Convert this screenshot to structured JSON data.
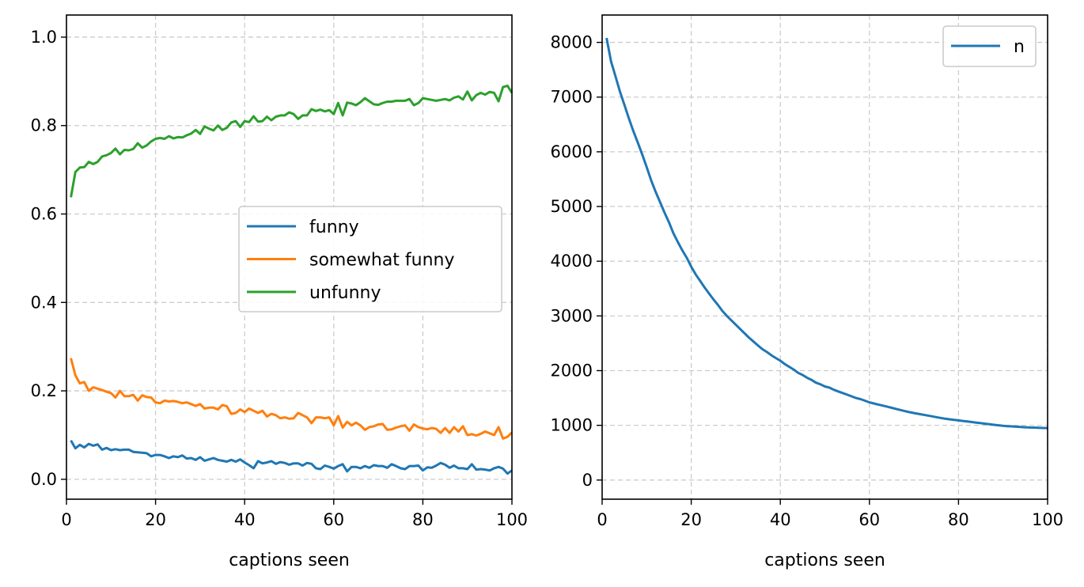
{
  "chart_data": [
    {
      "type": "line",
      "xlabel": "captions seen",
      "ylabel": "",
      "xlim": [
        0,
        100
      ],
      "ylim": [
        -0.045,
        1.05
      ],
      "xticks": [
        0,
        20,
        40,
        60,
        80,
        100
      ],
      "yticks": [
        0.0,
        0.2,
        0.4,
        0.6,
        0.8,
        1.0
      ],
      "ytick_labels": [
        "0.0",
        "0.2",
        "0.4",
        "0.6",
        "0.8",
        "1.0"
      ],
      "grid": true,
      "legend_position": "center-right",
      "x": [
        1,
        2,
        3,
        4,
        5,
        6,
        7,
        8,
        9,
        10,
        11,
        12,
        13,
        14,
        15,
        16,
        17,
        18,
        19,
        20,
        21,
        22,
        23,
        24,
        25,
        26,
        27,
        28,
        29,
        30,
        31,
        32,
        33,
        34,
        35,
        36,
        37,
        38,
        39,
        40,
        41,
        42,
        43,
        44,
        45,
        46,
        47,
        48,
        49,
        50,
        51,
        52,
        53,
        54,
        55,
        56,
        57,
        58,
        59,
        60,
        61,
        62,
        63,
        64,
        65,
        66,
        67,
        68,
        69,
        70,
        71,
        72,
        73,
        74,
        75,
        76,
        77,
        78,
        79,
        80,
        81,
        82,
        83,
        84,
        85,
        86,
        87,
        88,
        89,
        90,
        91,
        92,
        93,
        94,
        95,
        96,
        97,
        98,
        99,
        100
      ],
      "series": [
        {
          "name": "funny",
          "color": "#1f77b4",
          "values": [
            0.088,
            0.07,
            0.078,
            0.072,
            0.08,
            0.076,
            0.079,
            0.067,
            0.071,
            0.066,
            0.068,
            0.066,
            0.067,
            0.067,
            0.062,
            0.061,
            0.06,
            0.059,
            0.052,
            0.055,
            0.055,
            0.052,
            0.048,
            0.052,
            0.05,
            0.054,
            0.047,
            0.048,
            0.044,
            0.05,
            0.042,
            0.045,
            0.048,
            0.044,
            0.042,
            0.04,
            0.044,
            0.04,
            0.045,
            0.038,
            0.032,
            0.025,
            0.041,
            0.036,
            0.038,
            0.041,
            0.035,
            0.039,
            0.037,
            0.033,
            0.036,
            0.036,
            0.031,
            0.037,
            0.035,
            0.025,
            0.023,
            0.031,
            0.028,
            0.024,
            0.03,
            0.034,
            0.018,
            0.028,
            0.028,
            0.025,
            0.03,
            0.026,
            0.032,
            0.03,
            0.03,
            0.026,
            0.034,
            0.03,
            0.025,
            0.023,
            0.03,
            0.03,
            0.031,
            0.02,
            0.027,
            0.026,
            0.031,
            0.037,
            0.033,
            0.026,
            0.031,
            0.025,
            0.025,
            0.023,
            0.034,
            0.022,
            0.023,
            0.022,
            0.02,
            0.025,
            0.028,
            0.024,
            0.013,
            0.02
          ]
        },
        {
          "name": "somewhat funny",
          "color": "#ff7f0e",
          "values": [
            0.274,
            0.235,
            0.217,
            0.22,
            0.2,
            0.208,
            0.205,
            0.202,
            0.198,
            0.195,
            0.185,
            0.2,
            0.188,
            0.188,
            0.191,
            0.178,
            0.19,
            0.186,
            0.185,
            0.174,
            0.172,
            0.178,
            0.176,
            0.177,
            0.175,
            0.172,
            0.174,
            0.17,
            0.166,
            0.17,
            0.16,
            0.162,
            0.162,
            0.158,
            0.168,
            0.165,
            0.148,
            0.15,
            0.158,
            0.152,
            0.16,
            0.155,
            0.15,
            0.155,
            0.142,
            0.148,
            0.145,
            0.138,
            0.14,
            0.137,
            0.138,
            0.15,
            0.145,
            0.14,
            0.127,
            0.14,
            0.14,
            0.138,
            0.14,
            0.122,
            0.143,
            0.117,
            0.13,
            0.122,
            0.128,
            0.122,
            0.112,
            0.118,
            0.12,
            0.124,
            0.125,
            0.112,
            0.113,
            0.117,
            0.12,
            0.122,
            0.11,
            0.124,
            0.118,
            0.115,
            0.113,
            0.116,
            0.114,
            0.105,
            0.116,
            0.105,
            0.118,
            0.108,
            0.12,
            0.1,
            0.102,
            0.099,
            0.103,
            0.108,
            0.104,
            0.1,
            0.118,
            0.092,
            0.096,
            0.106
          ]
        },
        {
          "name": "unfunny",
          "color": "#2ca02c",
          "values": [
            0.638,
            0.695,
            0.705,
            0.706,
            0.718,
            0.713,
            0.718,
            0.73,
            0.733,
            0.738,
            0.748,
            0.735,
            0.745,
            0.744,
            0.747,
            0.76,
            0.75,
            0.755,
            0.764,
            0.77,
            0.772,
            0.77,
            0.776,
            0.771,
            0.774,
            0.773,
            0.778,
            0.782,
            0.79,
            0.781,
            0.798,
            0.793,
            0.789,
            0.8,
            0.79,
            0.795,
            0.807,
            0.81,
            0.797,
            0.81,
            0.808,
            0.821,
            0.809,
            0.81,
            0.82,
            0.812,
            0.82,
            0.823,
            0.823,
            0.83,
            0.826,
            0.815,
            0.823,
            0.823,
            0.837,
            0.833,
            0.836,
            0.832,
            0.835,
            0.826,
            0.851,
            0.823,
            0.852,
            0.85,
            0.846,
            0.853,
            0.862,
            0.855,
            0.848,
            0.847,
            0.851,
            0.854,
            0.854,
            0.856,
            0.856,
            0.856,
            0.86,
            0.846,
            0.851,
            0.862,
            0.86,
            0.858,
            0.856,
            0.858,
            0.86,
            0.857,
            0.863,
            0.866,
            0.859,
            0.877,
            0.857,
            0.869,
            0.874,
            0.87,
            0.876,
            0.874,
            0.855,
            0.887,
            0.89,
            0.874
          ]
        }
      ]
    },
    {
      "type": "line",
      "xlabel": "captions seen",
      "ylabel": "",
      "xlim": [
        0,
        100
      ],
      "ylim": [
        -350,
        8500
      ],
      "xticks": [
        0,
        20,
        40,
        60,
        80,
        100
      ],
      "yticks": [
        0,
        1000,
        2000,
        3000,
        4000,
        5000,
        6000,
        7000,
        8000
      ],
      "ytick_labels": [
        "0",
        "1000",
        "2000",
        "3000",
        "4000",
        "5000",
        "6000",
        "7000",
        "8000"
      ],
      "grid": true,
      "legend_position": "top-right",
      "x": [
        1,
        2,
        3,
        4,
        5,
        6,
        7,
        8,
        9,
        10,
        11,
        12,
        13,
        14,
        15,
        16,
        17,
        18,
        19,
        20,
        21,
        22,
        23,
        24,
        25,
        26,
        27,
        28,
        29,
        30,
        31,
        32,
        33,
        34,
        35,
        36,
        37,
        38,
        39,
        40,
        41,
        42,
        43,
        44,
        45,
        46,
        47,
        48,
        49,
        50,
        51,
        52,
        53,
        54,
        55,
        56,
        57,
        58,
        59,
        60,
        61,
        62,
        63,
        64,
        65,
        66,
        67,
        68,
        69,
        70,
        71,
        72,
        73,
        74,
        75,
        76,
        77,
        78,
        79,
        80,
        81,
        82,
        83,
        84,
        85,
        86,
        87,
        88,
        89,
        90,
        91,
        92,
        93,
        94,
        95,
        96,
        97,
        98,
        99,
        100
      ],
      "series": [
        {
          "name": "n",
          "color": "#1f77b4",
          "values": [
            8080,
            7650,
            7380,
            7100,
            6860,
            6610,
            6380,
            6170,
            5950,
            5720,
            5480,
            5270,
            5080,
            4890,
            4710,
            4510,
            4350,
            4200,
            4060,
            3900,
            3760,
            3640,
            3520,
            3410,
            3300,
            3200,
            3090,
            3000,
            2920,
            2840,
            2760,
            2680,
            2600,
            2530,
            2460,
            2390,
            2340,
            2280,
            2230,
            2180,
            2120,
            2070,
            2020,
            1960,
            1920,
            1870,
            1830,
            1780,
            1750,
            1710,
            1690,
            1650,
            1620,
            1590,
            1560,
            1530,
            1500,
            1480,
            1450,
            1420,
            1400,
            1380,
            1360,
            1340,
            1320,
            1300,
            1280,
            1260,
            1240,
            1225,
            1210,
            1195,
            1180,
            1165,
            1150,
            1135,
            1120,
            1110,
            1100,
            1090,
            1080,
            1070,
            1060,
            1050,
            1040,
            1030,
            1020,
            1010,
            1000,
            990,
            985,
            980,
            975,
            970,
            965,
            960,
            958,
            955,
            952,
            950
          ]
        }
      ]
    }
  ]
}
